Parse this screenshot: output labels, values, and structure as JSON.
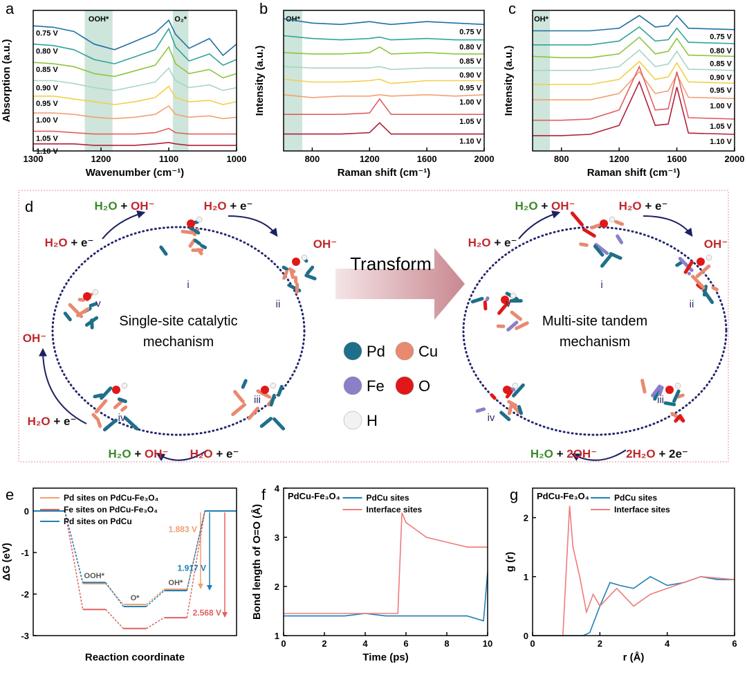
{
  "chart_data": [
    {
      "type": "line",
      "panel": "a",
      "xlabel": "Wavenumber (cm⁻¹)",
      "ylabel": "Absorption (a.u.)",
      "xlim": [
        1300,
        1000
      ],
      "ylim": [
        0,
        10
      ],
      "xticks": [
        1300,
        1200,
        1100,
        1000
      ],
      "series_labels": "left",
      "band_color": "#bcdccd",
      "bands": [
        {
          "label": "OOH*",
          "x": [
            1224,
            1183
          ]
        },
        {
          "label": "O₂*",
          "x": [
            1094,
            1071
          ]
        }
      ],
      "x": [
        1300,
        1270,
        1240,
        1210,
        1180,
        1150,
        1120,
        1100,
        1090,
        1070,
        1040,
        1020,
        1000
      ],
      "series": [
        {
          "name": "0.75 V",
          "color": "#1f6fa3",
          "values": [
            8.9,
            8.8,
            8.5,
            7.6,
            7.2,
            7.8,
            8.4,
            9.3,
            8.3,
            7.3,
            8.0,
            6.8,
            7.6
          ]
        },
        {
          "name": "0.80 V",
          "color": "#2fa39a",
          "values": [
            7.6,
            7.5,
            7.2,
            6.5,
            6.2,
            6.7,
            7.2,
            8.7,
            7.4,
            6.4,
            6.9,
            6.1,
            6.5
          ]
        },
        {
          "name": "0.85 V",
          "color": "#8cc63f",
          "values": [
            6.3,
            6.2,
            6.0,
            5.5,
            5.3,
            5.7,
            6.1,
            7.4,
            6.2,
            5.5,
            5.8,
            5.2,
            5.5
          ]
        },
        {
          "name": "0.90 V",
          "color": "#a8d5c8",
          "values": [
            5.0,
            5.0,
            4.8,
            4.5,
            4.3,
            4.6,
            4.9,
            5.9,
            5.0,
            4.5,
            4.7,
            4.3,
            4.5
          ]
        },
        {
          "name": "0.95 V",
          "color": "#f2cf4a",
          "values": [
            3.9,
            3.9,
            3.7,
            3.5,
            3.3,
            3.5,
            3.8,
            4.6,
            3.8,
            3.5,
            3.6,
            3.3,
            3.5
          ]
        },
        {
          "name": "1.00 V",
          "color": "#f4a070",
          "values": [
            2.7,
            2.7,
            2.6,
            2.4,
            2.3,
            2.4,
            2.6,
            3.2,
            2.6,
            2.4,
            2.5,
            2.3,
            2.4
          ]
        },
        {
          "name": "1.05 V",
          "color": "#e06060",
          "values": [
            1.4,
            1.4,
            1.3,
            1.2,
            1.2,
            1.2,
            1.3,
            1.6,
            1.3,
            1.2,
            1.2,
            1.2,
            1.2
          ]
        },
        {
          "name": "1.10 V",
          "color": "#b0203a",
          "values": [
            0.5,
            0.5,
            0.5,
            0.4,
            0.4,
            0.4,
            0.5,
            0.6,
            0.5,
            0.4,
            0.4,
            0.4,
            0.4
          ]
        }
      ]
    },
    {
      "type": "line",
      "panel": "b",
      "xlabel": "Raman shift (cm⁻¹)",
      "ylabel": "Intensity (a.u.)",
      "xlim": [
        600,
        2000
      ],
      "ylim": [
        0,
        10
      ],
      "xticks": [
        800,
        1200,
        1600,
        2000
      ],
      "series_labels": "right",
      "band_color": "#bcdccd",
      "bands": [
        {
          "label": "OH*",
          "x": [
            600,
            730
          ]
        }
      ],
      "x": [
        600,
        800,
        1000,
        1200,
        1270,
        1350,
        1600,
        1800,
        2000
      ],
      "series": [
        {
          "name": "0.75 V",
          "color": "#1f6fa3",
          "values": [
            9.4,
            9.1,
            9.0,
            9.2,
            9.1,
            9.0,
            9.2,
            9.1,
            9.0
          ]
        },
        {
          "name": "0.80 V",
          "color": "#2fa39a",
          "values": [
            8.2,
            8.0,
            7.9,
            8.0,
            8.1,
            7.9,
            8.0,
            7.9,
            7.9
          ]
        },
        {
          "name": "0.85 V",
          "color": "#8cc63f",
          "values": [
            7.0,
            6.9,
            6.9,
            7.0,
            7.4,
            6.9,
            7.0,
            6.9,
            6.9
          ]
        },
        {
          "name": "0.90 V",
          "color": "#a8d5c8",
          "values": [
            6.0,
            5.9,
            5.9,
            5.9,
            6.0,
            5.8,
            5.9,
            5.9,
            5.9
          ]
        },
        {
          "name": "0.95 V",
          "color": "#f2cf4a",
          "values": [
            5.1,
            4.9,
            4.9,
            5.0,
            5.1,
            4.8,
            5.0,
            5.0,
            5.0
          ]
        },
        {
          "name": "1.00 V",
          "color": "#f4a070",
          "values": [
            4.0,
            3.8,
            3.9,
            3.9,
            4.0,
            3.9,
            4.0,
            3.9,
            4.0
          ]
        },
        {
          "name": "1.05 V",
          "color": "#e06060",
          "values": [
            2.6,
            2.6,
            2.6,
            2.7,
            3.7,
            2.6,
            2.6,
            2.6,
            2.6
          ]
        },
        {
          "name": "1.10 V",
          "color": "#b0203a",
          "values": [
            1.2,
            1.2,
            1.2,
            1.3,
            2.0,
            1.2,
            1.2,
            1.2,
            1.2
          ]
        }
      ]
    },
    {
      "type": "line",
      "panel": "c",
      "xlabel": "Raman shift (cm⁻¹)",
      "ylabel": "Intensity (a.u.)",
      "xlim": [
        600,
        2000
      ],
      "ylim": [
        0,
        11
      ],
      "xticks": [
        800,
        1200,
        1600,
        2000
      ],
      "series_labels": "right",
      "band_color": "#bcdccd",
      "bands": [
        {
          "label": "OH*",
          "x": [
            600,
            720
          ]
        }
      ],
      "x": [
        600,
        800,
        1000,
        1200,
        1340,
        1450,
        1540,
        1600,
        1680,
        2000
      ],
      "series": [
        {
          "name": "0.75 V",
          "color": "#1f6fa3",
          "values": [
            9.4,
            9.4,
            9.4,
            9.6,
            10.6,
            9.7,
            9.8,
            10.6,
            9.6,
            9.5
          ]
        },
        {
          "name": "0.80 V",
          "color": "#2fa39a",
          "values": [
            8.3,
            8.3,
            8.3,
            8.6,
            9.7,
            8.6,
            8.7,
            9.6,
            8.5,
            8.4
          ]
        },
        {
          "name": "0.85 V",
          "color": "#8cc63f",
          "values": [
            7.4,
            7.3,
            7.3,
            7.6,
            8.9,
            7.6,
            7.8,
            8.8,
            7.5,
            7.4
          ]
        },
        {
          "name": "0.90 V",
          "color": "#a8d5c8",
          "values": [
            6.3,
            6.3,
            6.3,
            6.6,
            7.9,
            6.6,
            6.8,
            7.8,
            6.4,
            6.3
          ]
        },
        {
          "name": "0.95 V",
          "color": "#f2cf4a",
          "values": [
            5.2,
            5.2,
            5.2,
            5.6,
            7.0,
            5.6,
            5.8,
            6.9,
            5.4,
            5.3
          ]
        },
        {
          "name": "1.00 V",
          "color": "#f4a070",
          "values": [
            4.0,
            4.0,
            4.0,
            4.5,
            6.2,
            4.5,
            4.7,
            6.0,
            4.2,
            4.1
          ]
        },
        {
          "name": "1.05 V",
          "color": "#e06060",
          "values": [
            2.4,
            2.4,
            2.5,
            3.2,
            6.6,
            3.2,
            3.3,
            6.2,
            2.6,
            2.5
          ]
        },
        {
          "name": "1.10 V",
          "color": "#b0203a",
          "values": [
            1.2,
            1.2,
            1.3,
            2.0,
            5.4,
            2.0,
            2.1,
            5.0,
            1.4,
            1.3
          ]
        }
      ]
    },
    {
      "type": "energy",
      "panel": "e",
      "xlabel": "Reaction coordinate",
      "ylabel": "ΔG (eV)",
      "ylim": [
        -3,
        0.55
      ],
      "yticks": [
        0,
        -1,
        -2,
        -3
      ],
      "legend": "top-left",
      "categories": [
        null,
        "OOH*",
        "O*",
        "OH*",
        null
      ],
      "series": [
        {
          "name": "Pd sites on PdCu-Fe₃O₄",
          "color": "#f0a070",
          "values": [
            0,
            -1.75,
            -2.25,
            -1.883,
            0
          ],
          "annotation": "1.883 V"
        },
        {
          "name": "Fe sites on PdCu-Fe₃O₄",
          "color": "#e06060",
          "values": [
            0,
            -2.37,
            -2.83,
            -2.568,
            0
          ],
          "annotation": "2.568 V"
        },
        {
          "name": "Pd sites on PdCu",
          "color": "#1f7fb3",
          "values": [
            0,
            -1.72,
            -2.3,
            -1.917,
            0
          ],
          "annotation": "1.917 V"
        }
      ]
    },
    {
      "type": "line",
      "panel": "f",
      "title": "PdCu-Fe₃O₄",
      "xlabel": "Time (ps)",
      "ylabel": "Bond length of O=O (Å)",
      "xlim": [
        0,
        10
      ],
      "ylim": [
        1,
        4
      ],
      "xticks": [
        0,
        2,
        4,
        6,
        8,
        10
      ],
      "yticks": [
        1,
        2,
        3,
        4
      ],
      "legend": "top-right",
      "x": [
        0,
        1,
        2,
        3,
        4,
        5,
        5.6,
        5.8,
        6,
        7,
        8,
        9,
        9.8,
        10
      ],
      "series": [
        {
          "name": "PdCu sites",
          "color": "#1f7fb3",
          "values": [
            1.4,
            1.4,
            1.4,
            1.4,
            1.45,
            1.4,
            1.4,
            1.4,
            1.4,
            1.4,
            1.4,
            1.4,
            1.3,
            2.3
          ]
        },
        {
          "name": "Interface sites",
          "color": "#ee7b7b",
          "values": [
            1.45,
            1.45,
            1.45,
            1.45,
            1.45,
            1.45,
            1.45,
            3.5,
            3.3,
            3.0,
            2.9,
            2.8,
            2.8,
            2.8
          ]
        }
      ]
    },
    {
      "type": "line",
      "panel": "g",
      "title": "PdCu-Fe₃O₄",
      "xlabel": "r (Å)",
      "ylabel": "g (r)",
      "xlim": [
        0,
        6
      ],
      "ylim": [
        0,
        2.5
      ],
      "xticks": [
        0,
        2,
        4,
        6
      ],
      "yticks": [
        0,
        1,
        2
      ],
      "legend": "top-right",
      "series": [
        {
          "name": "PdCu sites",
          "color": "#1f7fb3",
          "x": [
            0,
            1.5,
            1.7,
            2,
            2.3,
            2.6,
            3,
            3.5,
            4,
            4.5,
            5,
            5.5,
            6
          ],
          "values": [
            0,
            0,
            0.05,
            0.5,
            0.9,
            0.85,
            0.8,
            1.0,
            0.85,
            0.9,
            1.0,
            0.95,
            0.95
          ]
        },
        {
          "name": "Interface sites",
          "color": "#ee7b7b",
          "x": [
            0,
            0.9,
            1.1,
            1.2,
            1.4,
            1.6,
            1.8,
            2,
            2.5,
            3,
            3.5,
            4,
            5,
            6
          ],
          "values": [
            0,
            0,
            2.2,
            1.5,
            1.0,
            0.4,
            0.7,
            0.5,
            0.8,
            0.5,
            0.7,
            0.8,
            1.0,
            0.95
          ]
        }
      ]
    }
  ],
  "diagram": {
    "panel": "d",
    "transform": "Transform",
    "atoms": [
      {
        "symbol": "Pd",
        "color": "#1e6f8a"
      },
      {
        "symbol": "Cu",
        "color": "#e88a70"
      },
      {
        "symbol": "Fe",
        "color": "#8a80c8"
      },
      {
        "symbol": "O",
        "color": "#e01818"
      },
      {
        "symbol": "H",
        "color": "#f2f2f2"
      }
    ],
    "cycles": [
      {
        "title": [
          "Single-site catalytic",
          "mechanism"
        ],
        "steps": [
          "i",
          "ii",
          "iii",
          "iv",
          "v"
        ],
        "reactions": [
          {
            "parts": [
              {
                "t": "H₂O",
                "c": "#3a8a2a"
              },
              {
                "t": " + ",
                "c": "#111"
              },
              {
                "t": "OH⁻",
                "c": "#c0282a"
              }
            ]
          },
          {
            "parts": [
              {
                "t": "H₂O",
                "c": "#c0282a"
              },
              {
                "t": " + e⁻",
                "c": "#111"
              }
            ]
          },
          {
            "parts": [
              {
                "t": "OH⁻",
                "c": "#c0282a"
              }
            ]
          },
          {
            "parts": [
              {
                "t": "H₂O",
                "c": "#c0282a"
              },
              {
                "t": " + e⁻",
                "c": "#111"
              }
            ]
          },
          {
            "parts": [
              {
                "t": "OH⁻",
                "c": "#c0282a"
              }
            ]
          },
          {
            "parts": [
              {
                "t": "H₂O",
                "c": "#c0282a"
              },
              {
                "t": " + e⁻",
                "c": "#111"
              }
            ]
          },
          {
            "parts": [
              {
                "t": "H₂O",
                "c": "#3a8a2a"
              },
              {
                "t": " + ",
                "c": "#111"
              },
              {
                "t": "OH⁻",
                "c": "#c0282a"
              }
            ]
          },
          {
            "parts": [
              {
                "t": "H₂O",
                "c": "#c0282a"
              },
              {
                "t": " + e⁻",
                "c": "#111"
              }
            ]
          }
        ]
      },
      {
        "title": [
          "Multi-site tandem",
          "mechanism"
        ],
        "steps": [
          "i",
          "ii",
          "iii",
          "iv",
          "v"
        ],
        "reactions": [
          {
            "parts": [
              {
                "t": "H₂O",
                "c": "#3a8a2a"
              },
              {
                "t": " + ",
                "c": "#111"
              },
              {
                "t": "OH⁻",
                "c": "#c0282a"
              }
            ]
          },
          {
            "parts": [
              {
                "t": "H₂O",
                "c": "#c0282a"
              },
              {
                "t": " + e⁻",
                "c": "#111"
              }
            ]
          },
          {
            "parts": [
              {
                "t": "OH⁻",
                "c": "#c0282a"
              }
            ]
          },
          {
            "parts": [
              {
                "t": "H₂O",
                "c": "#c0282a"
              },
              {
                "t": " + e⁻",
                "c": "#111"
              }
            ]
          },
          {
            "parts": [
              {
                "t": "H₂O",
                "c": "#3a8a2a"
              },
              {
                "t": " + ",
                "c": "#111"
              },
              {
                "t": "2OH⁻",
                "c": "#c0282a"
              }
            ]
          },
          {
            "parts": [
              {
                "t": "2H₂O",
                "c": "#c0282a"
              },
              {
                "t": " + 2e⁻",
                "c": "#111"
              }
            ]
          }
        ]
      }
    ]
  }
}
